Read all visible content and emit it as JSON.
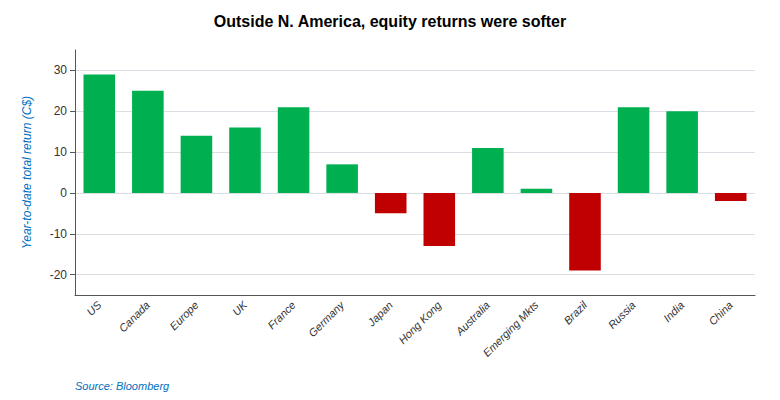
{
  "chart_data": {
    "type": "bar",
    "title": "Outside N. America, equity returns were softer",
    "ylabel": "Year-to-date total return (C$)",
    "annotations": [
      "Source: Bloomberg"
    ],
    "categories": [
      "US",
      "Canada",
      "Europe",
      "UK",
      "France",
      "Germany",
      "Japan",
      "Hong Kong",
      "Australia",
      "Emerging Mkts",
      "Brazil",
      "Russia",
      "India",
      "China"
    ],
    "values": [
      29.0,
      25.0,
      14.0,
      16.0,
      21.0,
      7.0,
      -5.0,
      -13.0,
      11.0,
      1.0,
      -19.0,
      21.0,
      20.0,
      -2.0
    ],
    "colors": [
      "#00b050",
      "#00b050",
      "#00b050",
      "#00b050",
      "#00b050",
      "#00b050",
      "#c00000",
      "#c00000",
      "#00b050",
      "#00b050",
      "#c00000",
      "#00b050",
      "#00b050",
      "#c00000"
    ],
    "ylim": [
      -25,
      35
    ],
    "yticks": [
      -20,
      -10,
      0,
      10,
      20,
      30
    ],
    "grid": true
  }
}
